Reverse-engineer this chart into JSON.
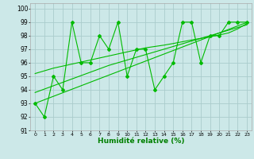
{
  "xlabel": "Humidité relative (%)",
  "background_color": "#cce8e8",
  "grid_color": "#aacccc",
  "line_color": "#00bb00",
  "xlim": [
    -0.5,
    23.5
  ],
  "ylim": [
    91,
    100.4
  ],
  "yticks": [
    91,
    92,
    93,
    94,
    95,
    96,
    97,
    98,
    99,
    100
  ],
  "xticks": [
    0,
    1,
    2,
    3,
    4,
    5,
    6,
    7,
    8,
    9,
    10,
    11,
    12,
    13,
    14,
    15,
    16,
    17,
    18,
    19,
    20,
    21,
    22,
    23
  ],
  "main_series": [
    93,
    92,
    95,
    94,
    99,
    96,
    96,
    98,
    97,
    99,
    95,
    97,
    97,
    94,
    95,
    96,
    99,
    99,
    96,
    98,
    98,
    99,
    99,
    99
  ],
  "regression_line1": [
    93.0,
    93.26,
    93.52,
    93.78,
    94.04,
    94.3,
    94.56,
    94.82,
    95.08,
    95.34,
    95.6,
    95.86,
    96.12,
    96.38,
    96.64,
    96.9,
    97.16,
    97.42,
    97.68,
    97.94,
    98.2,
    98.46,
    98.72,
    98.98
  ],
  "regression_line2": [
    93.8,
    94.05,
    94.3,
    94.55,
    94.8,
    95.05,
    95.3,
    95.55,
    95.8,
    96.0,
    96.2,
    96.4,
    96.6,
    96.8,
    97.0,
    97.2,
    97.4,
    97.6,
    97.8,
    98.0,
    98.2,
    98.4,
    98.6,
    98.8
  ],
  "regression_line3": [
    95.2,
    95.4,
    95.6,
    95.75,
    95.9,
    96.05,
    96.2,
    96.35,
    96.5,
    96.65,
    96.8,
    96.95,
    97.1,
    97.2,
    97.3,
    97.42,
    97.55,
    97.68,
    97.8,
    97.92,
    98.05,
    98.2,
    98.5,
    98.9
  ]
}
